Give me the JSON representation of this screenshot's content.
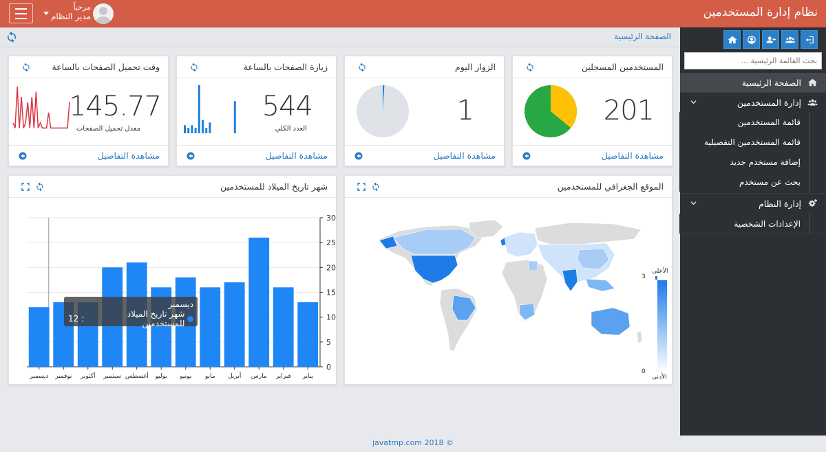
{
  "app": {
    "title": "نظام إدارة المستخدمين"
  },
  "user": {
    "greeting": "مرحباً",
    "name": "مدير النظام"
  },
  "sidebar": {
    "search_placeholder": "بحث القائمة الرئيسية ...",
    "quick_links": [
      "home-icon",
      "user-circle-icon",
      "user-plus-icon",
      "users-icon",
      "sign-out-icon"
    ],
    "items": [
      {
        "label": "الصفحة الرئيسية",
        "icon": "home-icon",
        "active": true
      },
      {
        "label": "إدارة المستخدمين",
        "icon": "users-icon",
        "expanded": true,
        "children": [
          "قائمة المستخدمين",
          "قائمة المستخدمين التفصيلية",
          "إضافة مستخدم جديد",
          "بحث عن مستخدم"
        ]
      },
      {
        "label": "إدارة النظام",
        "icon": "cogs-icon",
        "expanded": true,
        "children": [
          "الإعدادات الشخصية"
        ]
      }
    ]
  },
  "breadcrumb": "الصفحة الرئيسية",
  "cards": [
    {
      "title": "المستخدمين المسجلين",
      "value": "201",
      "caption": "",
      "link": "مشاهدة التفاصيل",
      "pie": {
        "colors": [
          "#ffc107",
          "#28a745"
        ],
        "fraction": 0.36
      }
    },
    {
      "title": "الزوار اليوم",
      "value": "1",
      "caption": "",
      "link": "مشاهدة التفاصيل",
      "pie": {
        "colors": [
          "#1e7fd8",
          "#dfe3e8"
        ],
        "fraction": 0.01
      }
    },
    {
      "title": "زيارة الصفحات بالساعة",
      "value": "544",
      "caption": "العدد الكلي",
      "link": "مشاهدة التفاصيل",
      "sparkbars": [
        3,
        2,
        3,
        2,
        18,
        5,
        2,
        4,
        0,
        0,
        0,
        0,
        0,
        0,
        12
      ]
    },
    {
      "title": "وقت تحميل الصفحات بالساعة",
      "value": "145.77",
      "caption": "معدل تحميل الصفحات",
      "link": "مشاهدة التفاصيل",
      "sparkline": [
        2,
        1,
        9,
        1,
        7,
        1,
        2,
        6,
        1,
        7,
        1,
        8,
        1,
        2,
        1,
        1,
        1,
        4,
        1,
        1,
        1,
        1,
        1,
        1,
        1,
        1,
        1,
        6
      ]
    }
  ],
  "map_card": {
    "title": "الموقع الجغرافي للمستخدمين",
    "legend_high": "الأعلى",
    "legend_low": "الأدنى",
    "legend_max": "3",
    "legend_min": "0"
  },
  "chart_card": {
    "title": "شهر تاريخ الميلاد للمستخدمين"
  },
  "chart_data": {
    "type": "bar",
    "categories": [
      "يناير",
      "فبراير",
      "مارس",
      "أبريل",
      "مايو",
      "يونيو",
      "يوليو",
      "أغسطس",
      "سبتمبر",
      "أكتوبر",
      "نوفمبر",
      "ديسمبر"
    ],
    "series": [
      {
        "name": "شهر تاريخ الميلاد للمستخدمين",
        "values": [
          13,
          16,
          26,
          17,
          16,
          18,
          16,
          21,
          20,
          13,
          13,
          12
        ]
      }
    ],
    "ylim": [
      0,
      30
    ],
    "yticks": [
      0,
      5,
      10,
      15,
      20,
      25,
      30
    ],
    "tooltip": {
      "category": "ديسمبر",
      "series": "شهر تاريخ الميلاد للمستخدمين",
      "value": "12"
    },
    "color": "#1e86f5"
  },
  "footer": "© 2018 javatmp.com"
}
